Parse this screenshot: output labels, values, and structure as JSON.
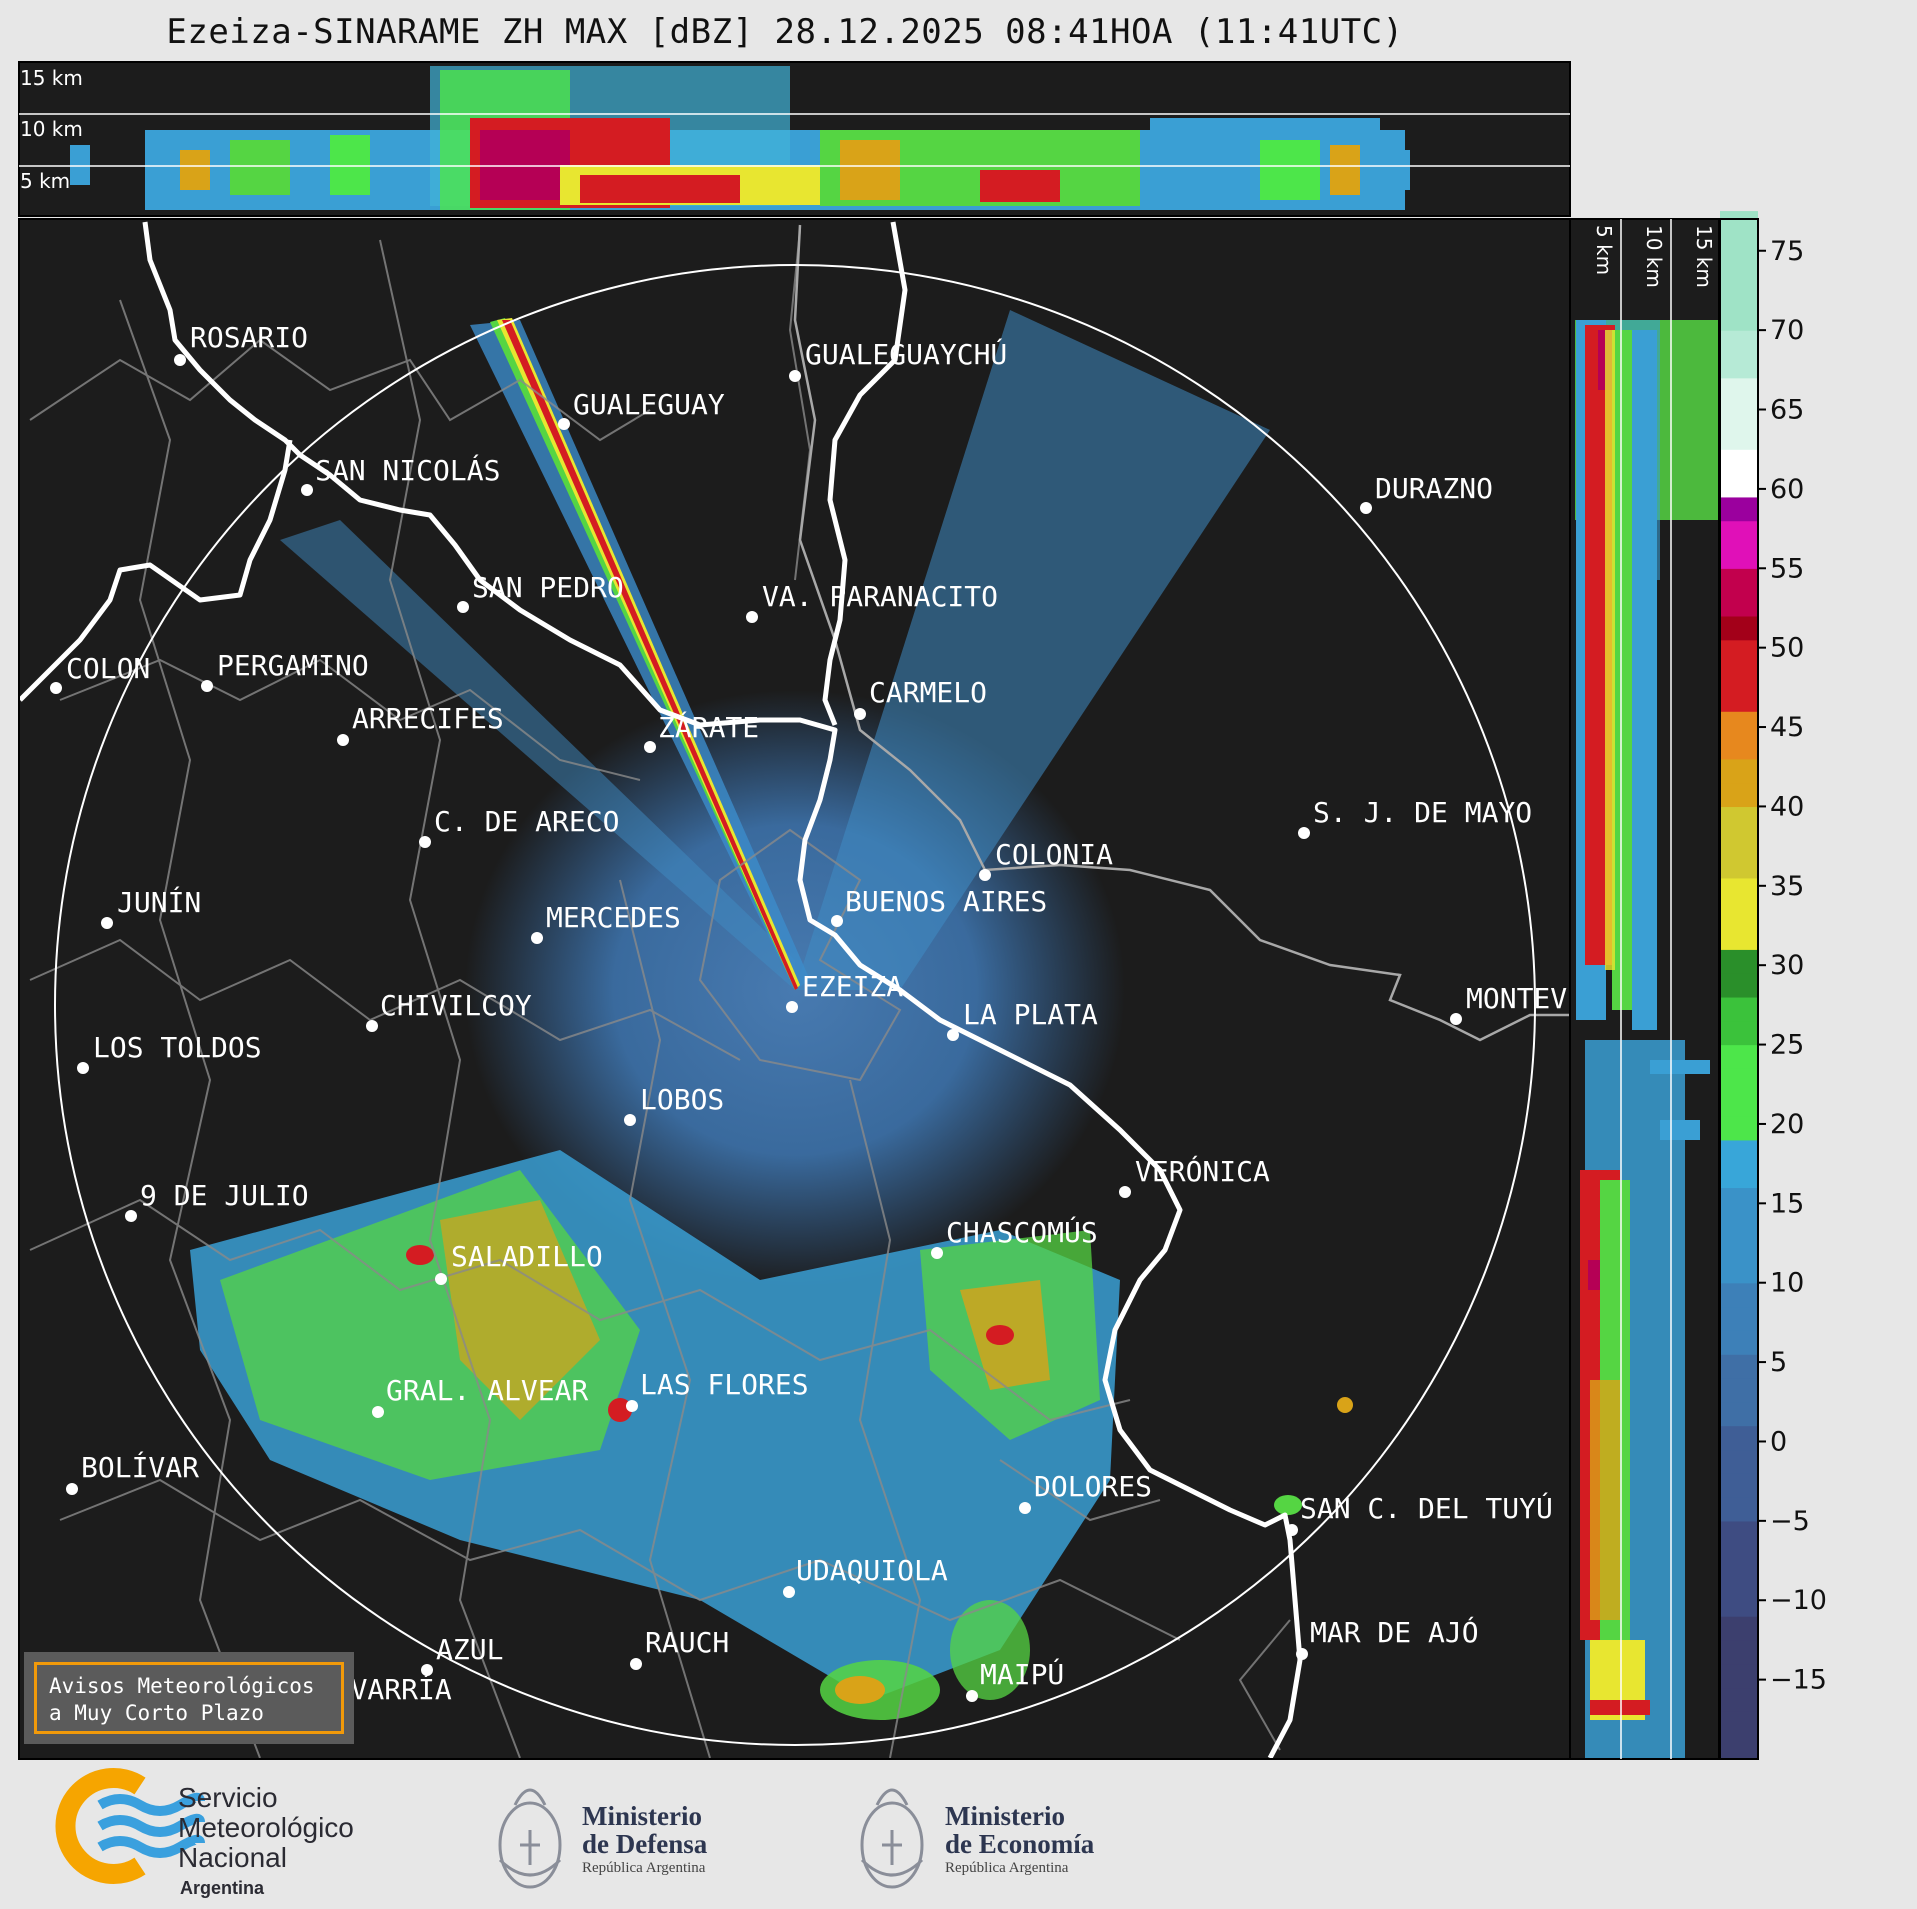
{
  "title": "Ezeiza-SINARAME ZH MAX [dBZ] 28.12.2025 08:41HOA (11:41UTC)",
  "altitude_labels_top": [
    "15 km",
    "10 km",
    "5 km"
  ],
  "altitude_labels_side": [
    "5 km",
    "10 km",
    "15 km"
  ],
  "colorbar": {
    "ticks": [
      "75",
      "70",
      "65",
      "60",
      "55",
      "50",
      "45",
      "40",
      "35",
      "30",
      "25",
      "20",
      "15",
      "10",
      "5",
      "0",
      "−5",
      "−10",
      "−15"
    ],
    "min": -20,
    "max": 77
  },
  "cities": [
    {
      "name": "ROSARIO"
    },
    {
      "name": "GUALEGUAYCHÚ"
    },
    {
      "name": "GUALEGUAY"
    },
    {
      "name": "SAN NICOLÁS"
    },
    {
      "name": "DURAZNO"
    },
    {
      "name": "SAN PEDRO"
    },
    {
      "name": "VA. PARANACITO"
    },
    {
      "name": "COLON"
    },
    {
      "name": "PERGAMINO"
    },
    {
      "name": "CARMELO"
    },
    {
      "name": "ARRECIFES"
    },
    {
      "name": "ZÁRATE"
    },
    {
      "name": "S. J. DE MAYO"
    },
    {
      "name": "C. DE ARECO"
    },
    {
      "name": "COLONIA"
    },
    {
      "name": "JUNÍN"
    },
    {
      "name": "BUENOS AIRES"
    },
    {
      "name": "MERCEDES"
    },
    {
      "name": "MONTEV"
    },
    {
      "name": "EZEIZA"
    },
    {
      "name": "CHIVILCOY"
    },
    {
      "name": "LA PLATA"
    },
    {
      "name": "LOS TOLDOS"
    },
    {
      "name": "LOBOS"
    },
    {
      "name": "VERÓNICA"
    },
    {
      "name": "9 DE JULIO"
    },
    {
      "name": "CHASCOMÚS"
    },
    {
      "name": "SALADILLO"
    },
    {
      "name": "GRAL. ALVEAR"
    },
    {
      "name": "LAS FLORES"
    },
    {
      "name": "BOLÍVAR"
    },
    {
      "name": "DOLORES"
    },
    {
      "name": "SAN C. DEL TUYÚ"
    },
    {
      "name": "UDAQUIOLA"
    },
    {
      "name": "RAUCH"
    },
    {
      "name": "MAR DE AJÓ"
    },
    {
      "name": "AZUL"
    },
    {
      "name": "OLAVARRÍA"
    },
    {
      "name": "MAIPÚ"
    }
  ],
  "warning": "Avisos Meteorológicos\na Muy Corto Plazo",
  "logos": {
    "smn": {
      "line1": "Servicio",
      "line2": "Meteorológico",
      "line3": "Nacional",
      "sub": "Argentina"
    },
    "defensa": {
      "line1": "Ministerio",
      "line2": "de Defensa",
      "sub": "República Argentina"
    },
    "economia": {
      "line1": "Ministerio",
      "line2": "de Economía",
      "sub": "República Argentina"
    }
  }
}
